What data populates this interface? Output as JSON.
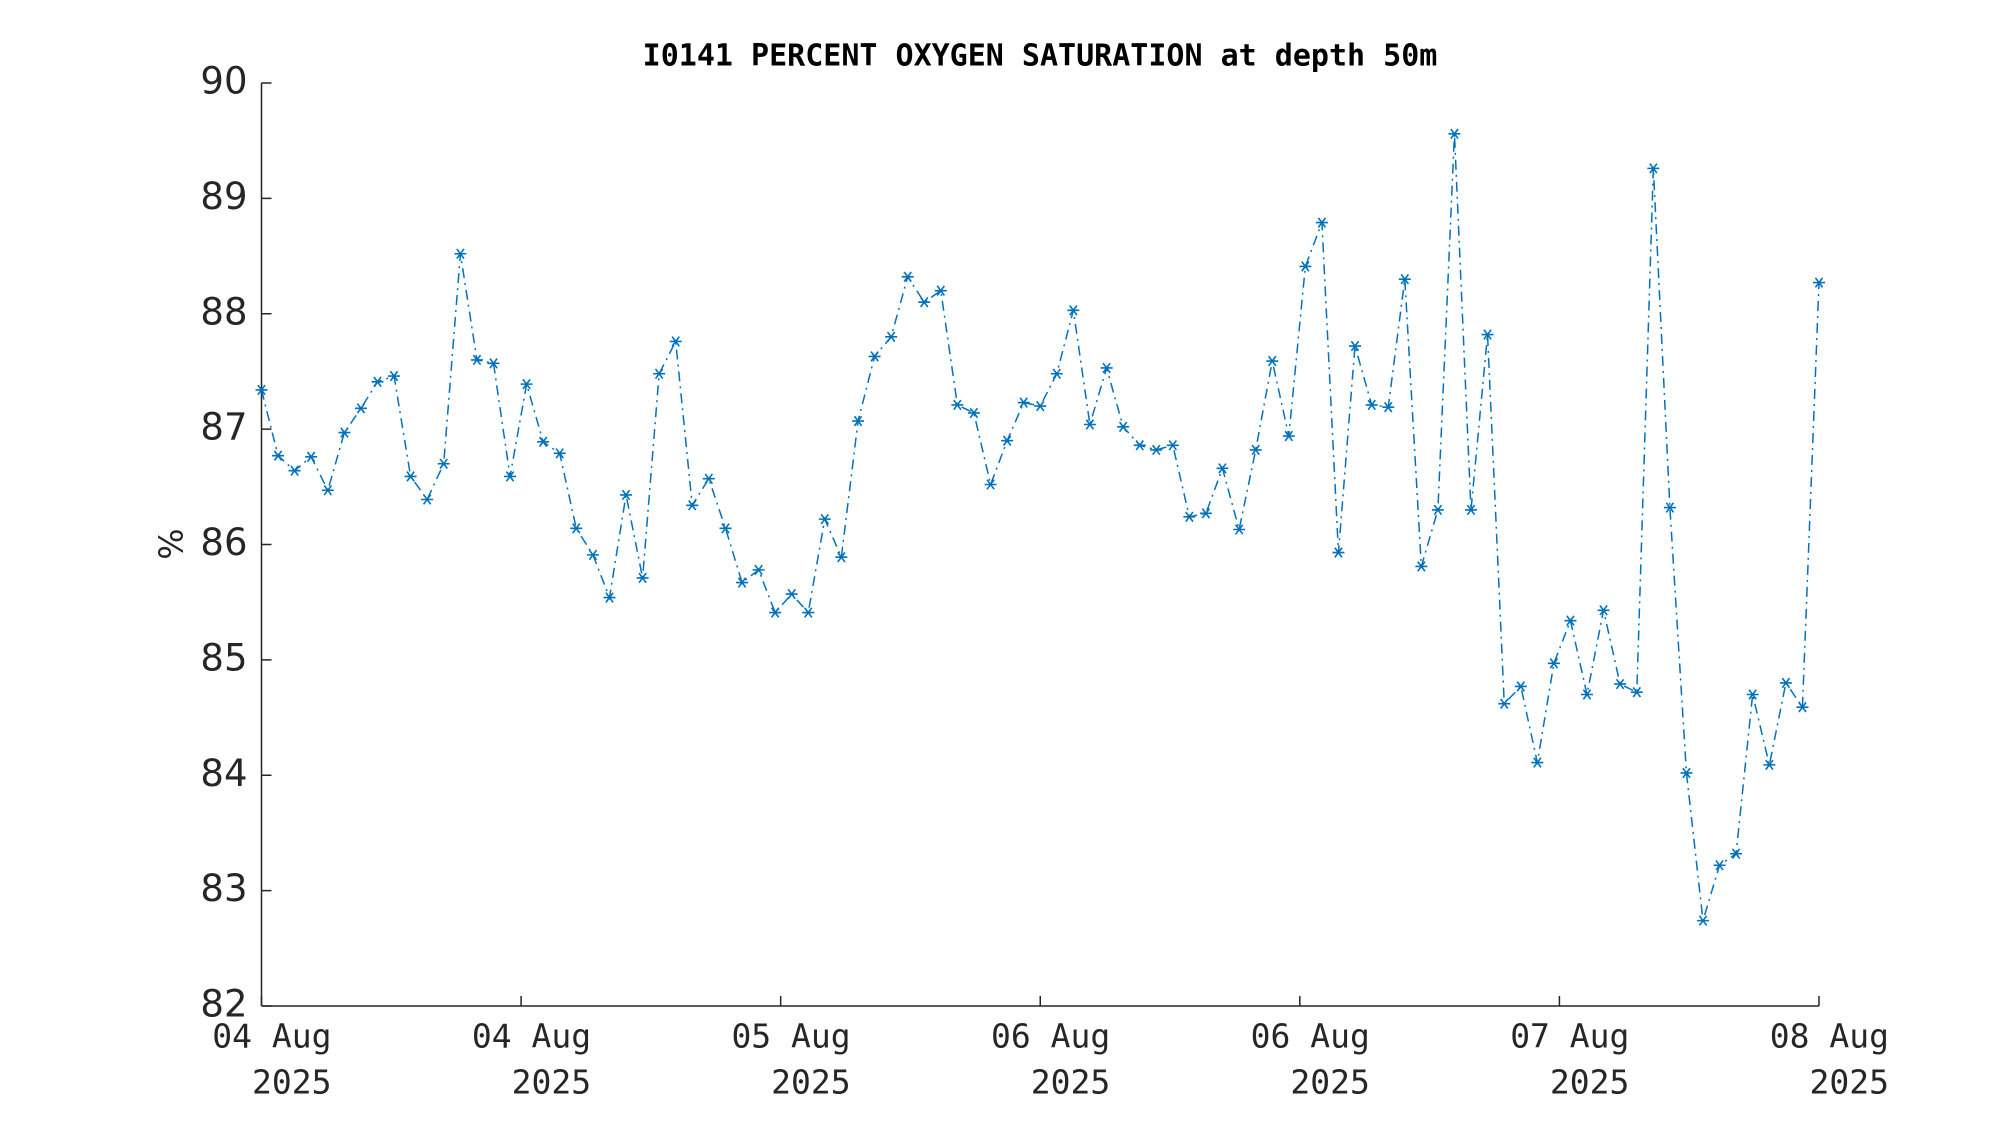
{
  "chart_data": {
    "type": "line",
    "title": "I0141 PERCENT OXYGEN SATURATION at depth 50m",
    "ylabel": "%",
    "x": [
      0,
      1.02,
      2.04,
      3.06,
      4.09,
      5.11,
      6.13,
      7.15,
      8.17,
      9.19,
      10.21,
      11.23,
      12.26,
      13.28,
      14.3,
      15.32,
      16.34,
      17.36,
      18.38,
      19.4,
      20.43,
      21.45,
      22.47,
      23.49,
      24.51,
      25.53,
      26.55,
      27.57,
      28.6,
      29.62,
      30.64,
      31.66,
      32.68,
      33.7,
      34.72,
      35.74,
      36.77,
      37.79,
      38.81,
      39.83,
      40.85,
      41.87,
      42.89,
      43.91,
      44.94,
      45.96,
      46.98,
      48,
      49.02,
      50.04,
      51.06,
      52.09,
      53.11,
      54.13,
      55.15,
      56.17,
      57.19,
      58.21,
      59.23,
      60.26,
      61.28,
      62.3,
      63.32,
      64.34,
      65.36,
      66.38,
      67.4,
      68.43,
      69.45,
      70.47,
      71.49,
      72.51,
      73.53,
      74.55,
      75.57,
      76.6,
      77.62,
      78.64,
      79.66,
      80.68,
      81.7,
      82.72,
      83.74,
      84.77,
      85.79,
      86.81,
      87.83,
      88.85,
      89.87,
      90.89,
      91.91,
      92.94,
      93.96,
      94.98,
      96
    ],
    "series": [
      {
        "color": "#0072bd",
        "values": [
          87.34,
          86.77,
          86.64,
          86.76,
          86.47,
          86.97,
          87.18,
          87.41,
          87.46,
          86.59,
          86.39,
          86.7,
          88.52,
          87.6,
          87.57,
          86.59,
          87.39,
          86.89,
          86.79,
          86.14,
          85.91,
          85.54,
          86.43,
          85.71,
          87.48,
          87.76,
          86.34,
          86.57,
          86.14,
          85.67,
          85.78,
          85.41,
          85.57,
          85.41,
          86.22,
          85.89,
          87.07,
          87.63,
          87.8,
          88.32,
          88.1,
          88.2,
          87.21,
          87.14,
          86.52,
          86.9,
          87.23,
          87.2,
          87.48,
          88.03,
          87.04,
          87.53,
          87.02,
          86.86,
          86.82,
          86.86,
          86.24,
          86.27,
          86.66,
          86.13,
          86.82,
          87.59,
          86.94,
          88.41,
          88.79,
          85.93,
          87.72,
          87.21,
          87.19,
          88.3,
          85.81,
          86.3,
          89.56,
          86.3,
          87.82,
          84.62,
          84.77,
          84.11,
          84.97,
          85.34,
          84.7,
          85.43,
          84.79,
          84.72,
          89.26,
          86.32,
          84.02,
          82.74,
          83.22,
          83.32,
          84.7,
          84.09,
          84.8,
          84.59,
          88.27
        ]
      }
    ],
    "xlim": [
      0,
      96
    ],
    "xticks": [
      {
        "value": 0,
        "label": [
          "04 Aug",
          "2025"
        ]
      },
      {
        "value": 16,
        "label": [
          "04 Aug",
          "2025"
        ]
      },
      {
        "value": 32,
        "label": [
          "05 Aug",
          "2025"
        ]
      },
      {
        "value": 48,
        "label": [
          "06 Aug",
          "2025"
        ]
      },
      {
        "value": 64,
        "label": [
          "06 Aug",
          "2025"
        ]
      },
      {
        "value": 80,
        "label": [
          "07 Aug",
          "2025"
        ]
      },
      {
        "value": 96,
        "label": [
          "08 Aug",
          "2025"
        ]
      }
    ],
    "ylim": [
      82,
      90
    ],
    "yticks": [
      82,
      83,
      84,
      85,
      86,
      87,
      88,
      89,
      90
    ]
  }
}
